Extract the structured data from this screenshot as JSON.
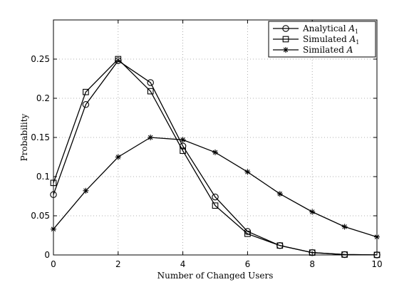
{
  "chart_data": {
    "type": "line",
    "title": "",
    "xlabel": "Number of Changed Users",
    "ylabel": "Probability",
    "xlim": [
      0,
      10
    ],
    "ylim": [
      0,
      0.3
    ],
    "xticks": [
      0,
      2,
      4,
      6,
      8,
      10
    ],
    "xtick_labels": [
      "0",
      "2",
      "4",
      "6",
      "8",
      "10"
    ],
    "yticks": [
      0,
      0.05,
      0.1,
      0.15,
      0.2,
      0.25
    ],
    "ytick_labels": [
      "0",
      "0.05",
      "0.1",
      "0.15",
      "0.2",
      "0.25"
    ],
    "grid": true,
    "legend_position": "top-right",
    "x": [
      0,
      1,
      2,
      3,
      4,
      5,
      6,
      7,
      8,
      9,
      10
    ],
    "series": [
      {
        "name": "Analytical",
        "name_subscript_symbol": "A",
        "name_subscript": "1",
        "marker": "circle",
        "color": "#000000",
        "values": [
          0.077,
          0.192,
          0.248,
          0.22,
          0.139,
          0.074,
          0.03,
          0.012,
          0.003,
          0.0005,
          0.0001
        ]
      },
      {
        "name": "Simulated",
        "name_subscript_symbol": "A",
        "name_subscript": "1",
        "marker": "square",
        "color": "#000000",
        "values": [
          0.092,
          0.208,
          0.25,
          0.209,
          0.133,
          0.063,
          0.027,
          0.012,
          0.003,
          0.0005,
          0.0001
        ]
      },
      {
        "name": "Similated",
        "name_subscript_symbol": "A",
        "name_subscript": "",
        "marker": "asterisk",
        "color": "#000000",
        "values": [
          0.033,
          0.082,
          0.125,
          0.15,
          0.147,
          0.131,
          0.106,
          0.078,
          0.055,
          0.036,
          0.023
        ]
      }
    ]
  }
}
